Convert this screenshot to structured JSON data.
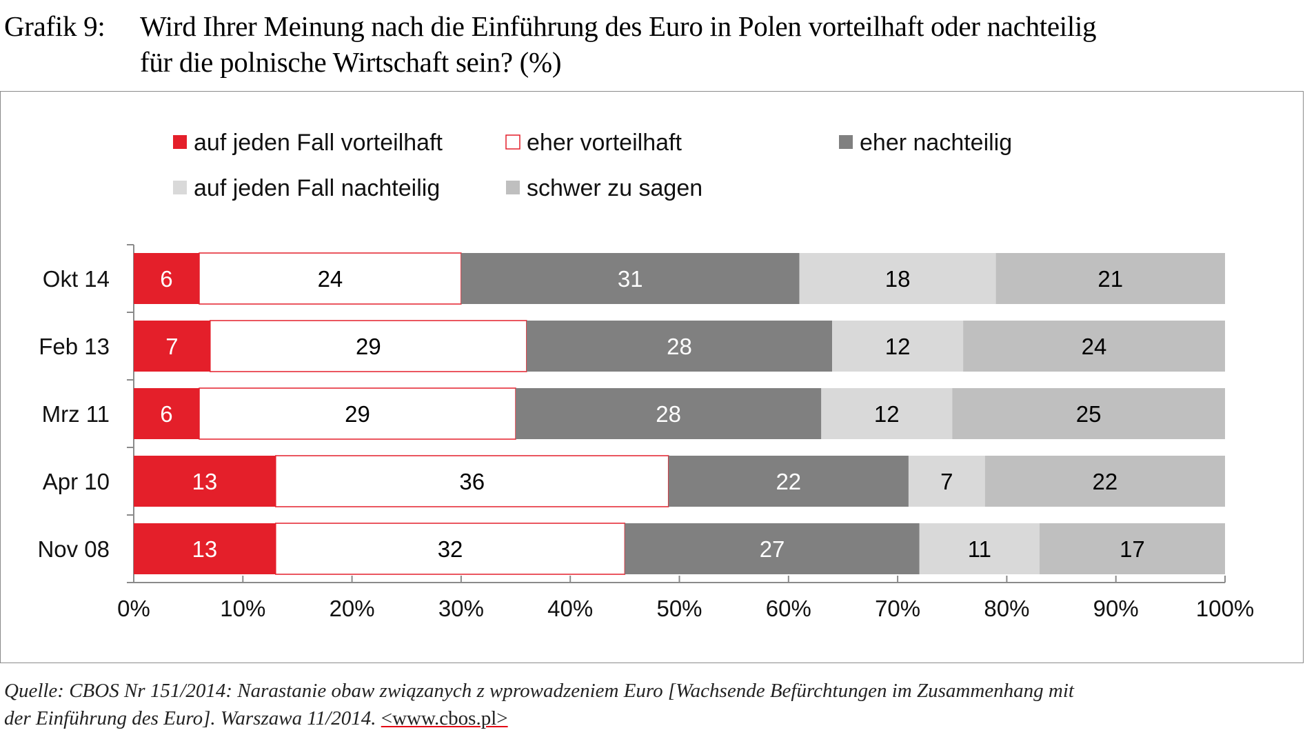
{
  "title": {
    "label": "Grafik 9:",
    "line1": "Wird Ihrer Meinung nach die Einführung des Euro in Polen vorteilhaft oder nachteilig",
    "line2": "für die polnische Wirtschaft sein? (%)"
  },
  "source": {
    "line1": "Quelle: CBOS Nr 151/2014: Narastanie obaw związanych z wprowadzeniem Euro [Wachsende Befürchtungen im Zusammenhang mit",
    "line2_text": "der Einführung des Euro]. Warszawa 11/2014. ",
    "link": "<www.cbos.pl>"
  },
  "colors": {
    "red": "#e41f2a",
    "white_fill": "#ffffff",
    "white_border": "#e41f2a",
    "dark_gray": "#808080",
    "light_gray": "#d9d9d9",
    "mid_gray": "#bfbfbf"
  },
  "chart_data": {
    "type": "bar",
    "orientation": "horizontal",
    "stacked": true,
    "categories": [
      "Okt 14",
      "Feb 13",
      "Mrz 11",
      "Apr 10",
      "Nov 08"
    ],
    "series": [
      {
        "name": "auf jeden Fall vorteilhaft",
        "color": "#e41f2a",
        "label_color": "#ffffff",
        "values": [
          6,
          7,
          6,
          13,
          13
        ]
      },
      {
        "name": "eher vorteilhaft",
        "color": "#ffffff",
        "border": "#e41f2a",
        "label_color": "#000000",
        "values": [
          24,
          29,
          29,
          36,
          32
        ]
      },
      {
        "name": "eher nachteilig",
        "color": "#808080",
        "label_color": "#ffffff",
        "values": [
          31,
          28,
          28,
          22,
          27
        ]
      },
      {
        "name": "auf jeden Fall nachteilig",
        "color": "#d9d9d9",
        "label_color": "#000000",
        "values": [
          18,
          12,
          12,
          7,
          11
        ]
      },
      {
        "name": "schwer zu sagen",
        "color": "#bfbfbf",
        "label_color": "#000000",
        "values": [
          21,
          24,
          25,
          22,
          17
        ]
      }
    ],
    "xlim": [
      0,
      100
    ],
    "xticks": [
      "0%",
      "10%",
      "20%",
      "30%",
      "40%",
      "50%",
      "60%",
      "70%",
      "80%",
      "90%",
      "100%"
    ],
    "legend_position": "top",
    "grid": false
  }
}
